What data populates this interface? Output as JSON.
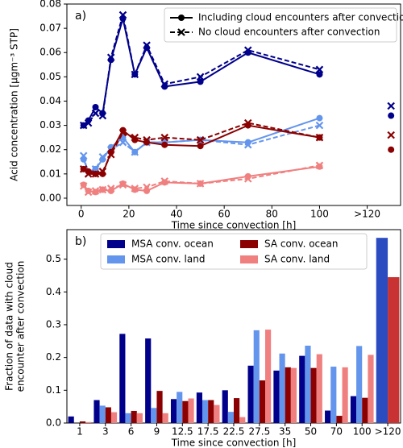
{
  "chart_data": [
    {
      "type": "line",
      "annotation": "a)",
      "xlabel": "Time since convection [h]",
      "ylabel": "Acid concentration [μgm⁻³ STP]",
      "x": [
        1,
        3,
        6,
        9,
        12.5,
        17.5,
        22.5,
        27.5,
        35,
        50,
        70,
        100
      ],
      "x_outside": 130,
      "xlim": [
        -6,
        134
      ],
      "ylim": [
        -0.003,
        0.08
      ],
      "xticks": [
        0,
        20,
        40,
        60,
        80,
        100,
        {
          "value": 120,
          "label": ">120"
        }
      ],
      "yticks": [
        {
          "value": 0,
          "label": "0.00"
        },
        {
          "value": 0.01,
          "label": "0.01"
        },
        {
          "value": 0.02,
          "label": "0.02"
        },
        {
          "value": 0.03,
          "label": "0.03"
        },
        {
          "value": 0.04,
          "label": "0.04"
        },
        {
          "value": 0.05,
          "label": "0.05"
        },
        {
          "value": 0.06,
          "label": "0.06"
        },
        {
          "value": 0.07,
          "label": "0.07"
        },
        {
          "value": 0.08,
          "label": "0.08"
        }
      ],
      "legend": [
        {
          "label": "Including cloud encounters after convection",
          "linestyle": "solid",
          "marker": "o"
        },
        {
          "label": "No cloud encounters after convection",
          "linestyle": "dashed",
          "marker": "x"
        }
      ],
      "legend_loc": "upper right",
      "series": [
        {
          "color": "#00008b",
          "linestyle": "solid",
          "marker": "o",
          "values": [
            0.03,
            0.032,
            0.0375,
            0.035,
            0.057,
            0.074,
            0.051,
            0.062,
            0.046,
            0.048,
            0.06,
            0.051
          ],
          "outside": 0.034
        },
        {
          "color": "#00008b",
          "linestyle": "dashed",
          "marker": "x",
          "values": [
            0.03,
            0.031,
            0.035,
            0.034,
            0.058,
            0.0755,
            0.051,
            0.063,
            0.047,
            0.05,
            0.061,
            0.053
          ],
          "outside": 0.038
        },
        {
          "color": "#6495ed",
          "linestyle": "solid",
          "marker": "o",
          "values": [
            0.016,
            0.011,
            0.012,
            0.016,
            0.021,
            0.025,
            0.019,
            0.023,
            0.023,
            0.024,
            0.023,
            0.033
          ],
          "outside": null
        },
        {
          "color": "#6495ed",
          "linestyle": "dashed",
          "marker": "x",
          "values": [
            0.0175,
            0.01,
            0.012,
            0.017,
            0.02,
            0.023,
            0.019,
            0.023,
            0.023,
            0.024,
            0.022,
            0.03
          ],
          "outside": null
        },
        {
          "color": "#8b0000",
          "linestyle": "solid",
          "marker": "o",
          "values": [
            0.012,
            0.011,
            0.01,
            0.01,
            0.019,
            0.028,
            0.024,
            0.023,
            0.022,
            0.0215,
            0.03,
            0.025
          ],
          "outside": 0.02
        },
        {
          "color": "#8b0000",
          "linestyle": "dashed",
          "marker": "x",
          "values": [
            0.012,
            0.01,
            0.01,
            0.011,
            0.018,
            0.027,
            0.025,
            0.024,
            0.025,
            0.024,
            0.031,
            0.025
          ],
          "outside": 0.026
        },
        {
          "color": "#f08080",
          "linestyle": "solid",
          "marker": "o",
          "values": [
            0.0055,
            0.003,
            0.0025,
            0.0035,
            0.003,
            0.006,
            0.0035,
            0.003,
            0.0065,
            0.006,
            0.009,
            0.013
          ],
          "outside": null
        },
        {
          "color": "#f08080",
          "linestyle": "dashed",
          "marker": "x",
          "values": [
            0.005,
            0.0025,
            0.003,
            0.0035,
            0.004,
            0.0055,
            0.004,
            0.0045,
            0.007,
            0.006,
            0.008,
            0.0135
          ],
          "outside": null
        }
      ]
    },
    {
      "type": "bar",
      "annotation": "b)",
      "xlabel": "Time since convection [h]",
      "ylabel": [
        "Fraction of data with cloud",
        "encounter after convection"
      ],
      "categories": [
        "1",
        "3",
        "6",
        "9",
        "12.5",
        "17.5",
        "22.5",
        "27.5",
        "35",
        "50",
        "70",
        "100",
        ">120"
      ],
      "ylim": [
        0,
        0.59
      ],
      "yticks": [
        {
          "value": 0,
          "label": "0.0"
        },
        {
          "value": 0.1,
          "label": "0.1"
        },
        {
          "value": 0.2,
          "label": "0.2"
        },
        {
          "value": 0.3,
          "label": "0.3"
        },
        {
          "value": 0.4,
          "label": "0.4"
        },
        {
          "value": 0.5,
          "label": "0.5"
        }
      ],
      "legend_loc": "upper center",
      "series": [
        {
          "name": "MSA conv. ocean",
          "color": "#00008b",
          "values": [
            0.02,
            0.07,
            0.272,
            0.258,
            0.073,
            0.093,
            0.1,
            0.175,
            0.16,
            0.205,
            0.038,
            0.082,
            null
          ]
        },
        {
          "name": "MSA conv. land",
          "color": "#6495ed",
          "values": [
            0.0,
            0.053,
            0.03,
            0.046,
            0.095,
            0.07,
            0.034,
            0.283,
            0.212,
            0.236,
            0.172,
            0.235,
            null
          ]
        },
        {
          "name": "SA conv. ocean",
          "color": "#8b0000",
          "values": [
            0.005,
            0.048,
            0.037,
            0.098,
            0.067,
            0.07,
            0.076,
            0.13,
            0.17,
            0.168,
            0.022,
            0.077,
            null
          ]
        },
        {
          "name": "SA conv. land",
          "color": "#f08080",
          "values": [
            0.003,
            0.033,
            0.03,
            0.03,
            0.075,
            0.055,
            0.018,
            0.285,
            0.168,
            0.21,
            0.17,
            0.208,
            null
          ]
        },
        {
          "color": "#2b4bc0",
          "values": [
            null,
            null,
            null,
            null,
            null,
            null,
            null,
            null,
            null,
            null,
            null,
            null,
            0.565
          ]
        },
        {
          "color": "#c83232",
          "values": [
            null,
            null,
            null,
            null,
            null,
            null,
            null,
            null,
            null,
            null,
            null,
            null,
            0.445
          ]
        }
      ]
    }
  ]
}
